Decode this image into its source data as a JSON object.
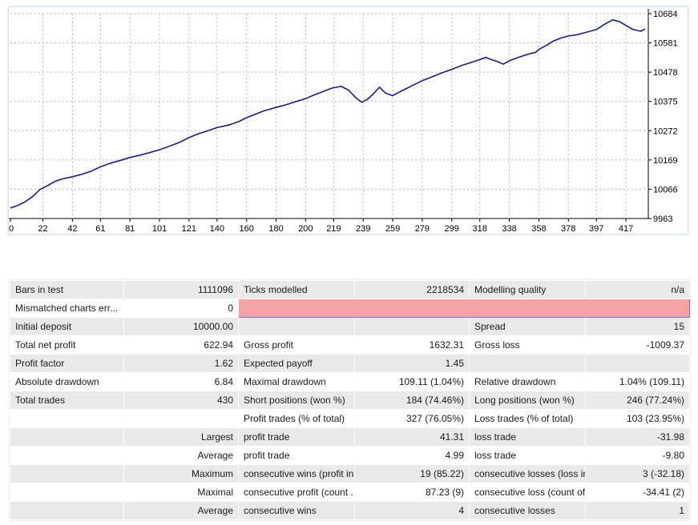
{
  "chart_data": {
    "type": "line",
    "title": "",
    "xlabel": "",
    "ylabel": "",
    "x_ticks": [
      "0",
      "22",
      "42",
      "61",
      "81",
      "101",
      "121",
      "140",
      "160",
      "180",
      "200",
      "219",
      "239",
      "259",
      "279",
      "299",
      "318",
      "338",
      "358",
      "378",
      "397",
      "417"
    ],
    "y_ticks": [
      "10684",
      "10581",
      "10478",
      "10375",
      "10272",
      "10169",
      "10066",
      "9963"
    ],
    "ylim": [
      9963,
      10684
    ],
    "xlim": [
      0,
      430
    ],
    "grid": true,
    "line_color": "#1a1a9a",
    "series": [
      {
        "values": [
          [
            0,
            10000
          ],
          [
            5,
            10009
          ],
          [
            10,
            10022
          ],
          [
            15,
            10040
          ],
          [
            20,
            10065
          ],
          [
            25,
            10078
          ],
          [
            30,
            10093
          ],
          [
            35,
            10102
          ],
          [
            42,
            10110
          ],
          [
            48,
            10118
          ],
          [
            55,
            10130
          ],
          [
            61,
            10145
          ],
          [
            68,
            10158
          ],
          [
            75,
            10168
          ],
          [
            81,
            10178
          ],
          [
            88,
            10186
          ],
          [
            95,
            10196
          ],
          [
            101,
            10205
          ],
          [
            108,
            10218
          ],
          [
            115,
            10232
          ],
          [
            121,
            10248
          ],
          [
            128,
            10262
          ],
          [
            134,
            10272
          ],
          [
            140,
            10283
          ],
          [
            148,
            10292
          ],
          [
            155,
            10305
          ],
          [
            160,
            10318
          ],
          [
            166,
            10330
          ],
          [
            172,
            10342
          ],
          [
            180,
            10354
          ],
          [
            186,
            10362
          ],
          [
            192,
            10372
          ],
          [
            200,
            10385
          ],
          [
            206,
            10398
          ],
          [
            212,
            10410
          ],
          [
            218,
            10422
          ],
          [
            224,
            10428
          ],
          [
            229,
            10415
          ],
          [
            234,
            10388
          ],
          [
            238,
            10372
          ],
          [
            242,
            10383
          ],
          [
            246,
            10402
          ],
          [
            250,
            10425
          ],
          [
            254,
            10405
          ],
          [
            259,
            10395
          ],
          [
            265,
            10412
          ],
          [
            272,
            10430
          ],
          [
            279,
            10448
          ],
          [
            286,
            10462
          ],
          [
            292,
            10475
          ],
          [
            299,
            10488
          ],
          [
            306,
            10502
          ],
          [
            312,
            10512
          ],
          [
            318,
            10522
          ],
          [
            322,
            10530
          ],
          [
            326,
            10522
          ],
          [
            330,
            10515
          ],
          [
            334,
            10506
          ],
          [
            338,
            10518
          ],
          [
            344,
            10530
          ],
          [
            350,
            10540
          ],
          [
            356,
            10548
          ],
          [
            358,
            10558
          ],
          [
            363,
            10572
          ],
          [
            368,
            10588
          ],
          [
            373,
            10598
          ],
          [
            378,
            10605
          ],
          [
            384,
            10610
          ],
          [
            390,
            10618
          ],
          [
            397,
            10628
          ],
          [
            403,
            10648
          ],
          [
            408,
            10662
          ],
          [
            413,
            10655
          ],
          [
            417,
            10642
          ],
          [
            422,
            10628
          ],
          [
            427,
            10622
          ],
          [
            430,
            10630
          ]
        ]
      }
    ]
  },
  "report": {
    "rows": [
      {
        "c1": "Bars in test",
        "c2": "1111096",
        "c3": "Ticks modelled",
        "c4": "2218534",
        "c5": "Modelling quality",
        "c6": "n/a"
      },
      {
        "c1": "Mismatched charts err...",
        "c2": "0"
      },
      {
        "c1": "Initial deposit",
        "c2": "10000.00",
        "c3": "",
        "c4": "",
        "c5": "Spread",
        "c6": "15"
      },
      {
        "c1": "Total net profit",
        "c2": "622.94",
        "c3": "Gross profit",
        "c4": "1632.31",
        "c5": "Gross loss",
        "c6": "-1009.37"
      },
      {
        "c1": "Profit factor",
        "c2": "1.62",
        "c3": "Expected payoff",
        "c4": "1.45",
        "c5": "",
        "c6": ""
      },
      {
        "c1": "Absolute drawdown",
        "c2": "6.84",
        "c3": "Maximal drawdown",
        "c4": "109.11 (1.04%)",
        "c5": "Relative drawdown",
        "c6": "1.04% (109.11)"
      },
      {
        "c1": "Total trades",
        "c2": "430",
        "c3": "Short positions (won %)",
        "c4": "184 (74.46%)",
        "c5": "Long positions (won %)",
        "c6": "246 (77.24%)"
      },
      {
        "c1": "",
        "c2": "",
        "c3": "Profit trades (% of total)",
        "c4": "327 (76.05%)",
        "c5": "Loss trades (% of total)",
        "c6": "103 (23.95%)"
      },
      {
        "c1": "",
        "c2": "Largest",
        "c3": "profit trade",
        "c4": "41.31",
        "c5": "loss trade",
        "c6": "-31.98"
      },
      {
        "c1": "",
        "c2": "Average",
        "c3": "profit trade",
        "c4": "4.99",
        "c5": "loss trade",
        "c6": "-9.80"
      },
      {
        "c1": "",
        "c2": "Maximum",
        "c3": "consecutive wins (profit in ...",
        "c4": "19 (85.22)",
        "c5": "consecutive losses (loss in ...",
        "c6": "3 (-32.18)"
      },
      {
        "c1": "",
        "c2": "Maximal",
        "c3": "consecutive profit (count ...",
        "c4": "87.23 (9)",
        "c5": "consecutive loss (count of...",
        "c6": "-34.41 (2)"
      },
      {
        "c1": "",
        "c2": "Average",
        "c3": "consecutive wins",
        "c4": "4",
        "c5": "consecutive losses",
        "c6": "1"
      }
    ]
  }
}
